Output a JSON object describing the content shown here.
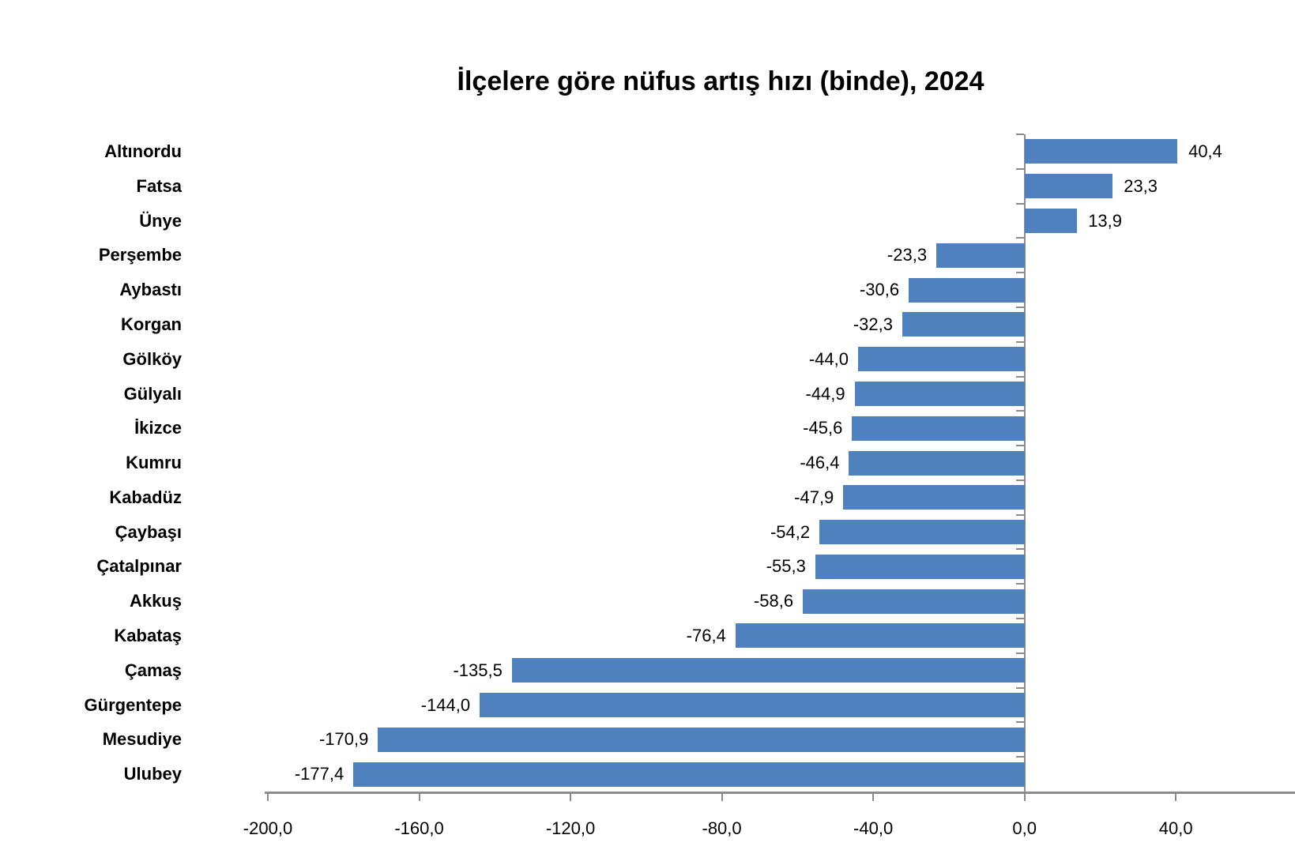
{
  "title": "İlçelere göre nüfus artış hızı (binde), 2024",
  "colors": {
    "bar": "#4E81BD",
    "axis": "#8C8C8C",
    "text": "#000000",
    "background": "#FFFFFF"
  },
  "chart_data": {
    "type": "bar",
    "orientation": "horizontal",
    "title": "İlçelere göre nüfus artış hızı (binde), 2024",
    "categories": [
      "Altınordu",
      "Fatsa",
      "Ünye",
      "Perşembe",
      "Aybastı",
      "Korgan",
      "Gölköy",
      "Gülyalı",
      "İkizce",
      "Kumru",
      "Kabadüz",
      "Çaybaşı",
      "Çatalpınar",
      "Akkuş",
      "Kabataş",
      "Çamaş",
      "Gürgentepe",
      "Mesudiye",
      "Ulubey"
    ],
    "values": [
      40.4,
      23.3,
      13.9,
      -23.3,
      -30.6,
      -32.3,
      -44.0,
      -44.9,
      -45.6,
      -46.4,
      -47.9,
      -54.2,
      -55.3,
      -58.6,
      -76.4,
      -135.5,
      -144.0,
      -170.9,
      -177.4
    ],
    "value_labels": [
      "40,4",
      "23,3",
      "13,9",
      "-23,3",
      "-30,6",
      "-32,3",
      "-44,0",
      "-44,9",
      "-45,6",
      "-46,4",
      "-47,9",
      "-54,2",
      "-55,3",
      "-58,6",
      "-76,4",
      "-135,5",
      "-144,0",
      "-170,9",
      "-177,4"
    ],
    "x_ticks": [
      -200,
      -160,
      -120,
      -80,
      -40,
      0,
      40
    ],
    "x_tick_labels": [
      "-200,0",
      "-160,0",
      "-120,0",
      "-80,0",
      "-40,0",
      "0,0",
      "40,0"
    ],
    "xlim": [
      -200,
      71.5
    ],
    "xlabel": "",
    "ylabel": "",
    "grid": false,
    "legend": false,
    "value_labels_shown": true
  }
}
